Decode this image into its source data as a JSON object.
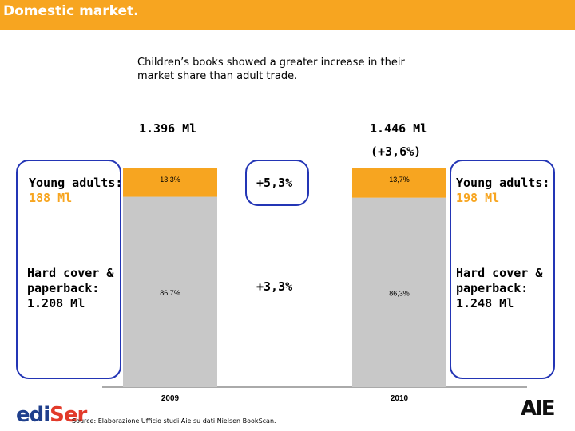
{
  "header": {
    "title": "Domestic market."
  },
  "subtitle": "Children’s books showed a greater increase in their market share than adult trade.",
  "totals": {
    "y2009": "1.396 Ml",
    "y2010": "1.446 Ml",
    "growth_total": "(+3,6%)"
  },
  "annotations": {
    "left_young_label": "Young adults:",
    "left_young_value": "188 Ml",
    "left_hard_label": "Hard cover & paperback:",
    "left_hard_value": "1.208 Ml",
    "right_young_label": "Young adults:",
    "right_young_value": "198 Ml",
    "right_hard_label": "Hard cover & paperback:",
    "right_hard_value": "1.248 Ml"
  },
  "growth": {
    "young": "+5,3%",
    "hard": "+3,3%"
  },
  "source": "Source: Elaborazione Ufficio studi Aie su dati Nielsen BookScan.",
  "logos": {
    "left_a": "edi",
    "left_b": "Ser",
    "right": "AIE"
  },
  "colors": {
    "header": "#f7a520",
    "young": "#f7a520",
    "hard": "#c8c8c8",
    "highlight_border": "#2335b5"
  },
  "chart_data": {
    "type": "bar",
    "stacked": true,
    "percent_stacked": true,
    "categories": [
      "2009",
      "2010"
    ],
    "series": [
      {
        "values": [
          86.7,
          86.3
        ],
        "labels": [
          "86,7%",
          "86,3%"
        ]
      },
      {
        "values": [
          13.3,
          13.7
        ],
        "labels": [
          "13,3%",
          "13,7%"
        ]
      }
    ],
    "ylim": [
      0,
      100
    ]
  }
}
